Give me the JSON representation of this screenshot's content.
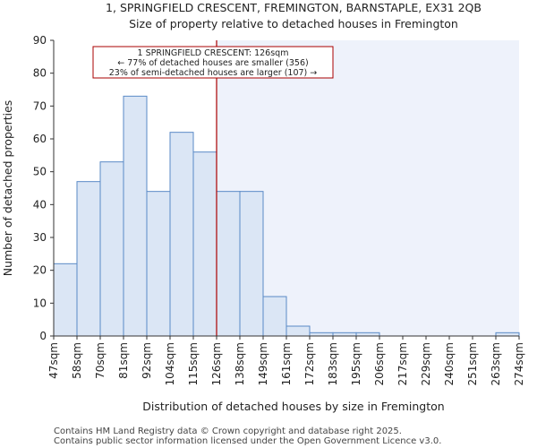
{
  "chart_data": {
    "type": "bar",
    "title_line1": "1, SPRINGFIELD CRESCENT, FREMINGTON, BARNSTAPLE, EX31 2QB",
    "title_line2": "Size of property relative to detached houses in Fremington",
    "xlabel": "Distribution of detached houses by size in Fremington",
    "ylabel": "Number of detached properties",
    "ylim": [
      0,
      90
    ],
    "yticks": [
      0,
      10,
      20,
      30,
      40,
      50,
      60,
      70,
      80,
      90
    ],
    "bin_edges": [
      "47sqm",
      "58sqm",
      "70sqm",
      "81sqm",
      "92sqm",
      "104sqm",
      "115sqm",
      "126sqm",
      "138sqm",
      "149sqm",
      "161sqm",
      "172sqm",
      "183sqm",
      "195sqm",
      "206sqm",
      "217sqm",
      "229sqm",
      "240sqm",
      "251sqm",
      "263sqm",
      "274sqm"
    ],
    "values": [
      22,
      47,
      53,
      73,
      44,
      62,
      56,
      44,
      44,
      12,
      3,
      1,
      1,
      1,
      0,
      0,
      0,
      0,
      0,
      1
    ],
    "marker_bin_index": 7,
    "grid": false,
    "annotation": {
      "line1": "1 SPRINGFIELD CRESCENT: 126sqm",
      "line2": "← 77% of detached houses are smaller (356)",
      "line3": "23% of semi-detached houses are larger (107) →"
    },
    "colors": {
      "bar_fill": "#dbe6f5",
      "bar_stroke": "#5a8ac6",
      "marker": "#aa0000",
      "right_region": "#eef2fb"
    }
  },
  "footer": {
    "line1": "Contains HM Land Registry data © Crown copyright and database right 2025.",
    "line2": "Contains public sector information licensed under the Open Government Licence v3.0."
  }
}
